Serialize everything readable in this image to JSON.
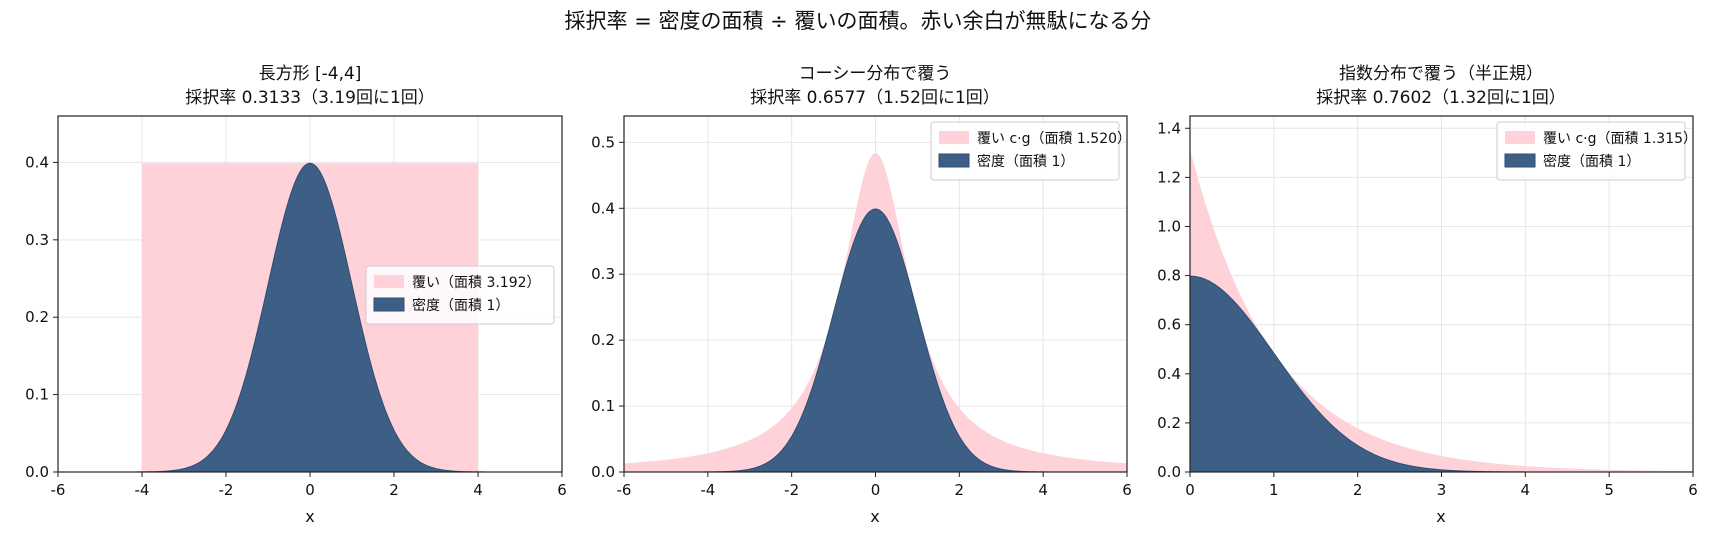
{
  "figure": {
    "suptitle": "採択率 = 密度の面積 ÷ 覆いの面積。赤い余白が無駄になる分",
    "colors": {
      "density": "#3d5f85",
      "envelope": "#ffd1d9"
    }
  },
  "chart_data": [
    {
      "type": "area",
      "title": "長方形 [-4,4]",
      "subtitle": "採択率 0.3133（3.19回に1回）",
      "xlabel": "x",
      "ylabel": "",
      "xlim": [
        -6,
        6
      ],
      "ylim": [
        0,
        0.46
      ],
      "xticks": [
        -6,
        -4,
        -2,
        0,
        2,
        4,
        6
      ],
      "yticks": [
        0.0,
        0.1,
        0.2,
        0.3,
        0.4
      ],
      "x_tick_labels": [
        "-6",
        "-4",
        "-2",
        "0",
        "2",
        "4",
        "6"
      ],
      "y_tick_labels": [
        "0.0",
        "0.1",
        "0.2",
        "0.3",
        "0.4"
      ],
      "grid": true,
      "legend_position": "center-right",
      "series": [
        {
          "name": "覆い（面積 3.192）",
          "kind": "envelope",
          "shape": "uniform",
          "x_range": [
            -4,
            4
          ],
          "height": 0.399
        },
        {
          "name": "密度（面積 1）",
          "kind": "density",
          "shape": "normal",
          "mean": 0,
          "sd": 1
        }
      ]
    },
    {
      "type": "area",
      "title": "コーシー分布で覆う",
      "subtitle": "採択率 0.6577（1.52回に1回）",
      "xlabel": "x",
      "ylabel": "",
      "xlim": [
        -6,
        6
      ],
      "ylim": [
        0,
        0.54
      ],
      "xticks": [
        -6,
        -4,
        -2,
        0,
        2,
        4,
        6
      ],
      "yticks": [
        0.0,
        0.1,
        0.2,
        0.3,
        0.4,
        0.5
      ],
      "x_tick_labels": [
        "-6",
        "-4",
        "-2",
        "0",
        "2",
        "4",
        "6"
      ],
      "y_tick_labels": [
        "0.0",
        "0.1",
        "0.2",
        "0.3",
        "0.4",
        "0.5"
      ],
      "grid": true,
      "legend_position": "top-right",
      "series": [
        {
          "name": "覆い c·g（面積 1.520）",
          "kind": "envelope",
          "shape": "cauchy",
          "scale_c": 1.52
        },
        {
          "name": "密度（面積 1）",
          "kind": "density",
          "shape": "normal",
          "mean": 0,
          "sd": 1
        }
      ]
    },
    {
      "type": "area",
      "title": "指数分布で覆う（半正規）",
      "subtitle": "採択率 0.7602（1.32回に1回）",
      "xlabel": "x",
      "ylabel": "",
      "xlim": [
        0,
        6
      ],
      "ylim": [
        0,
        1.45
      ],
      "xticks": [
        0,
        1,
        2,
        3,
        4,
        5,
        6
      ],
      "yticks": [
        0.0,
        0.2,
        0.4,
        0.6,
        0.8,
        1.0,
        1.2,
        1.4
      ],
      "x_tick_labels": [
        "0",
        "1",
        "2",
        "3",
        "4",
        "5",
        "6"
      ],
      "y_tick_labels": [
        "0.0",
        "0.2",
        "0.4",
        "0.6",
        "0.8",
        "1.0",
        "1.2",
        "1.4"
      ],
      "grid": true,
      "legend_position": "top-right",
      "series": [
        {
          "name": "覆い c·g（面積 1.315）",
          "kind": "envelope",
          "shape": "exponential",
          "scale_c": 1.315
        },
        {
          "name": "密度（面積 1）",
          "kind": "density",
          "shape": "half-normal",
          "sd": 1
        }
      ]
    }
  ]
}
